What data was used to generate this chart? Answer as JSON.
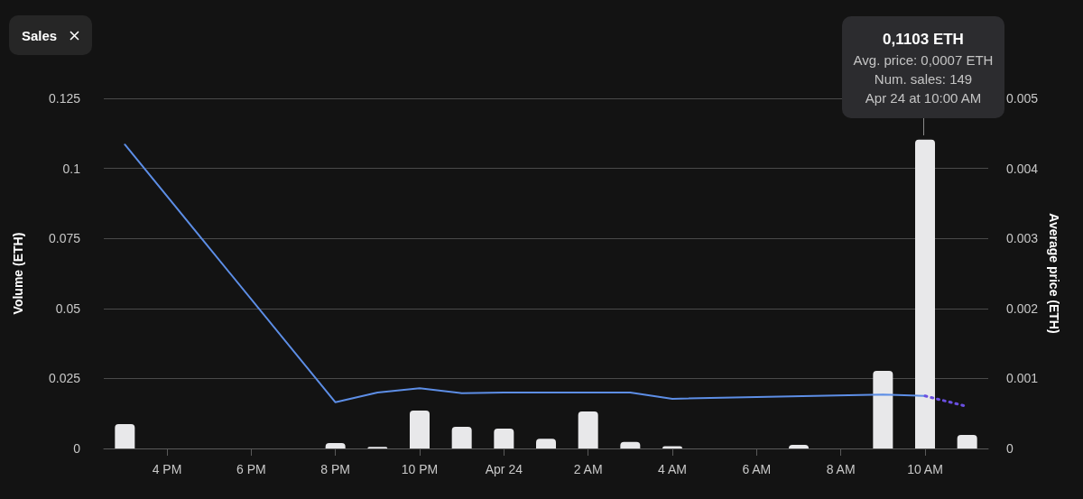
{
  "chart_data": {
    "type": "bar",
    "ylabel": "Volume (ETH)",
    "y2label": "Average price (ETH)",
    "categories": [
      null,
      "4 PM",
      null,
      "6 PM",
      null,
      "8 PM",
      null,
      "10 PM",
      null,
      "Apr 24",
      null,
      "2 AM",
      null,
      "4 AM",
      null,
      "6 AM",
      null,
      "8 AM",
      null,
      "10 AM",
      null
    ],
    "series": [
      {
        "color": "#e8e8ea",
        "values": [
          0.0087,
          null,
          null,
          null,
          null,
          0.0019,
          0.0006,
          0.0135,
          0.0077,
          0.0071,
          0.0035,
          0.0132,
          0.0023,
          0.0008,
          null,
          null,
          0.0013,
          null,
          0.0277,
          0.1103,
          0.0048
        ]
      },
      {
        "type": "line",
        "axis": "y2",
        "color": "#5d8ee6",
        "line_style": "solid",
        "values": [
          0.00434,
          null,
          null,
          null,
          null,
          0.00066,
          0.0008,
          0.00086,
          0.00079,
          0.0008,
          0.0008,
          0.0008,
          0.0008,
          0.00071,
          null,
          null,
          null,
          null,
          0.00077,
          0.00075,
          null
        ]
      },
      {
        "type": "line",
        "axis": "y2",
        "color": "#6a4fe0",
        "line_style": "dotted",
        "values": [
          null,
          null,
          null,
          null,
          null,
          null,
          null,
          null,
          null,
          null,
          null,
          null,
          null,
          null,
          null,
          null,
          null,
          null,
          null,
          0.00075,
          0.0006
        ]
      }
    ],
    "ylim": [
      0,
      0.125
    ],
    "yticks": [
      0,
      0.025,
      0.05,
      0.075,
      0.1,
      0.125
    ],
    "y2lim": [
      0,
      0.005
    ],
    "y2ticks": [
      0,
      0.001,
      0.002,
      0.003,
      0.004,
      0.005
    ],
    "grid": "y",
    "annotations": [
      "Sales",
      {
        "text": "0,1103 ETH\nAvg. price: 0,0007 ETH\nNum. sales: 149\nApr 24 at 10:00 AM",
        "x": "10 AM",
        "y": 0.1103
      }
    ]
  }
}
